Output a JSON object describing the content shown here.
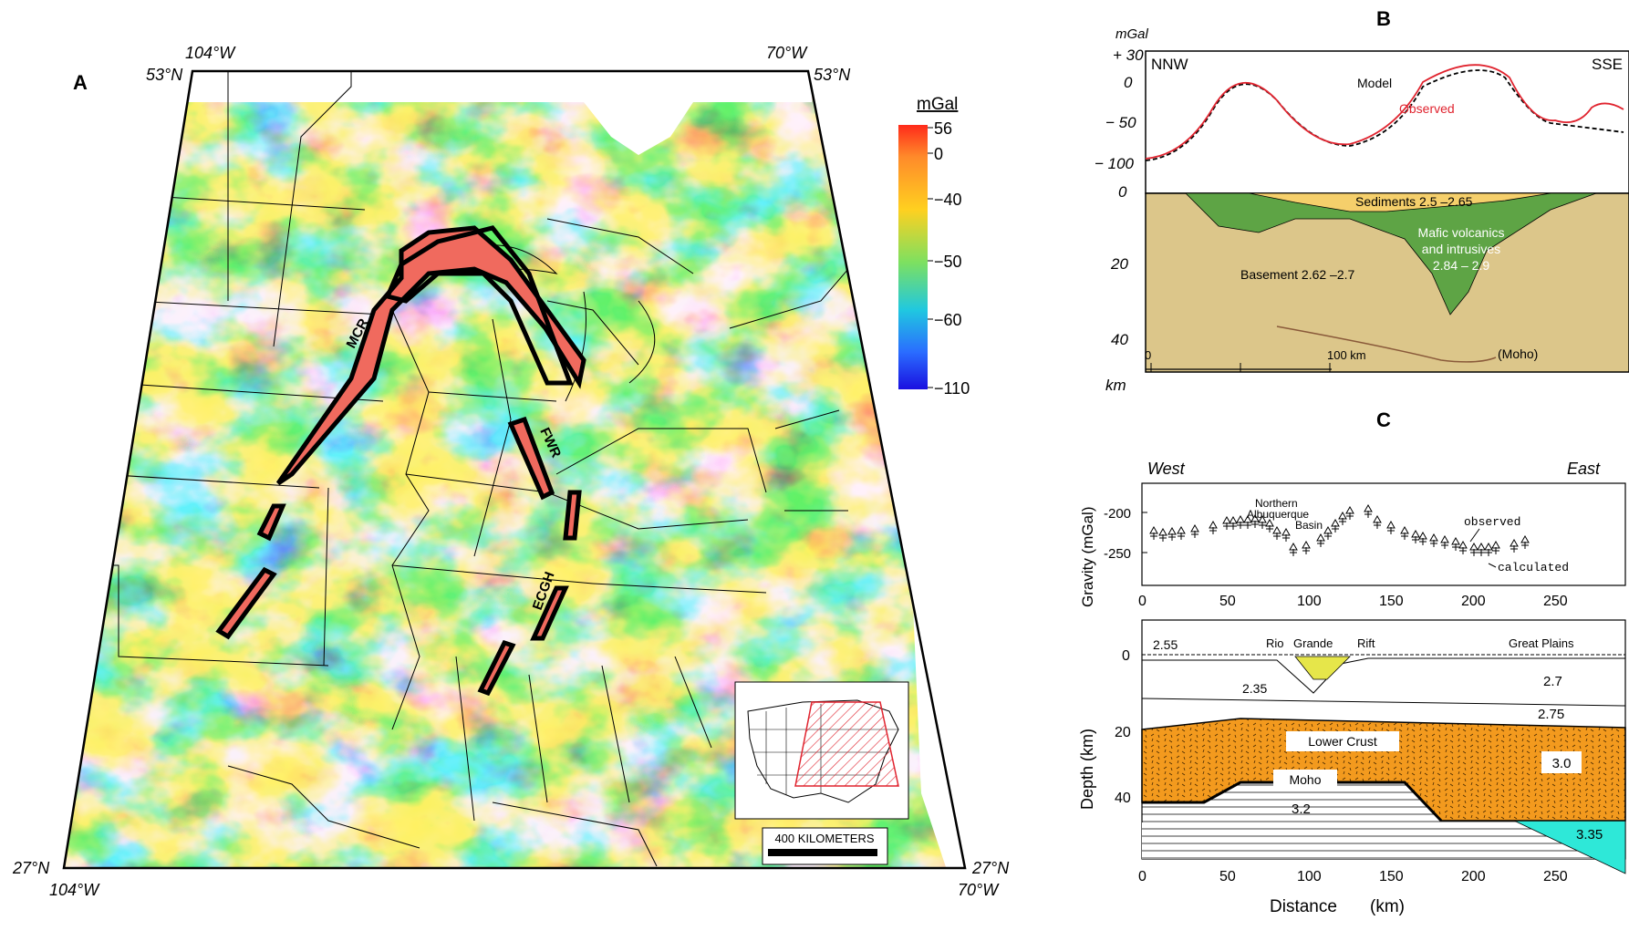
{
  "panel_a": {
    "label": "A",
    "corners": {
      "top_left_lon": "104°W",
      "top_left_lat": "53°N",
      "top_right_lon": "70°W",
      "top_right_lat": "53°N",
      "bottom_left_lat": "27°N",
      "bottom_left_lon": "104°W",
      "bottom_right_lat": "27°N",
      "bottom_right_lon": "70°W"
    },
    "colorbar": {
      "unit": "mGal",
      "ticks": [
        "56",
        "0",
        "−40",
        "−50",
        "−60",
        "−110"
      ],
      "colors": [
        "#ff2a1a",
        "#ff8a2a",
        "#ffd020",
        "#7de060",
        "#20c8e0",
        "#2a6cff",
        "#1a10e0"
      ]
    },
    "features": {
      "mcr": "MCR",
      "fwr": "FWR",
      "ecgh": "ECGH"
    },
    "scale_bar": "400 KILOMETERS",
    "outline_color": "#000000",
    "anomaly_fill": "#f06a5e"
  },
  "panel_b": {
    "label": "B",
    "y_unit": "mGal",
    "y_ticks": [
      "+ 30",
      "0",
      "− 50",
      "− 100"
    ],
    "left_end": "NNW",
    "right_end": "SSE",
    "legend_model": "Model",
    "legend_observed": "Observed",
    "depth_ticks": [
      "0",
      "20",
      "40"
    ],
    "depth_unit": "km",
    "sediments": "Sediments 2.5 –2.65",
    "mafic_line1": "Mafic volcanics",
    "mafic_line2": "and intrusives",
    "mafic_line3": "2.84 – 2.9",
    "basement": "Basement 2.62 –2.7",
    "moho": "(Moho)",
    "scale_start": "0",
    "scale_end": "100 km",
    "colors": {
      "observed": "#e0232e",
      "sediments": "#f5cf6b",
      "mafic": "#5ea445",
      "basement": "#dcc68a",
      "moho": "#8a5a3a"
    }
  },
  "panel_c": {
    "label": "C",
    "west": "West",
    "east": "East",
    "gravity_ylabel": "Gravity (mGal)",
    "gravity_ticks": [
      "-200",
      "-250"
    ],
    "basin_line1": "Northern",
    "basin_line2": "Albuquerque",
    "basin_line3": "Basin",
    "observed": "observed",
    "calculated": "calculated",
    "x_ticks": [
      "0",
      "50",
      "100",
      "150",
      "200",
      "250"
    ],
    "depth_ylabel": "Depth (km)",
    "depth_ticks": [
      "0",
      "20",
      "40"
    ],
    "rio": "Rio",
    "grande": "Grande",
    "rift": "Rift",
    "great_plains": "Great Plains",
    "d255": "2.55",
    "d235": "2.35",
    "d27": "2.7",
    "d275": "2.75",
    "lower_crust": "Lower Crust",
    "d30": "3.0",
    "moho": "Moho",
    "d32": "3.2",
    "d335": "3.35",
    "xlabel_distance": "Distance",
    "xlabel_unit": "(km)",
    "colors": {
      "lower_crust": "#f39a1e",
      "mantle_wedge": "#2ee8d8",
      "rift_fill": "#e6e64a"
    }
  }
}
